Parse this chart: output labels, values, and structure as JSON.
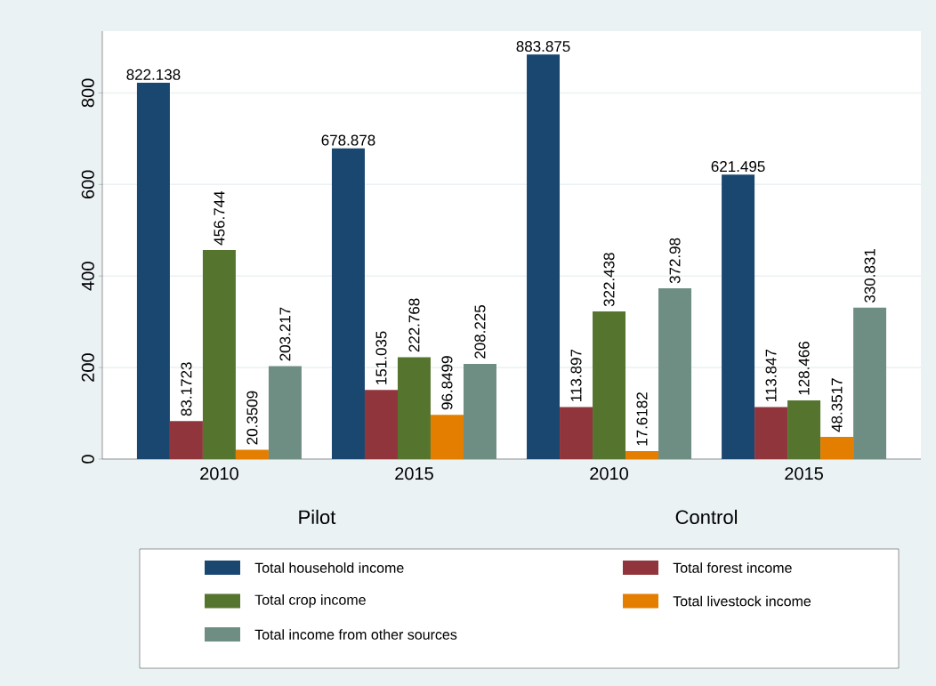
{
  "chart_data": {
    "type": "bar",
    "categories": [
      "2010",
      "2015",
      "2010",
      "2015"
    ],
    "series": [
      {
        "name": "Total household income",
        "color": "#1a476f",
        "values": [
          822.138,
          678.878,
          883.875,
          621.495
        ]
      },
      {
        "name": "Total forest income",
        "color": "#90353b",
        "values": [
          83.1723,
          151.035,
          113.897,
          113.847
        ]
      },
      {
        "name": "Total crop income",
        "color": "#55752f",
        "values": [
          456.744,
          222.768,
          322.438,
          128.466
        ]
      },
      {
        "name": "Total  livestock income",
        "color": "#e37e00",
        "values": [
          20.3509,
          96.8499,
          17.6182,
          48.3517
        ]
      },
      {
        "name": "Total income from other sources",
        "color": "#6e8e84",
        "values": [
          203.217,
          208.225,
          372.98,
          330.831
        ]
      }
    ],
    "annotations": [
      "Pilot",
      "Control"
    ],
    "ylim": [
      0,
      935
    ],
    "yticks": [
      0,
      200,
      400,
      600,
      800
    ],
    "grid": "y",
    "data_labels": true,
    "legend": "bottom"
  }
}
